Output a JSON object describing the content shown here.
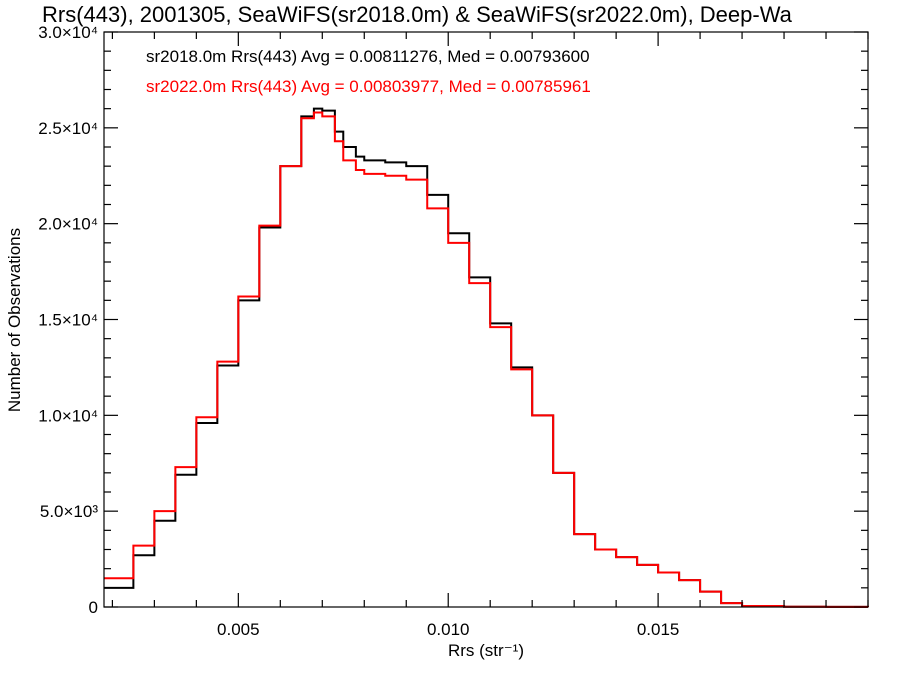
{
  "chart_data": {
    "type": "line",
    "title": "Rrs(443), 2001305, SeaWiFS(sr2018.0m) & SeaWiFS(sr2022.0m), Deep-Wa",
    "xlabel": "Rrs (str⁻¹)",
    "ylabel": "Number of Observations",
    "xlim": [
      0.0018,
      0.02
    ],
    "ylim": [
      0,
      30000
    ],
    "x_ticks": [
      0.005,
      0.01,
      0.015
    ],
    "x_tick_labels": [
      "0.005",
      "0.010",
      "0.015"
    ],
    "y_ticks": [
      0,
      5000,
      10000,
      15000,
      20000,
      25000,
      30000
    ],
    "y_tick_labels": [
      "0",
      "5.0×10³",
      "1.0×10⁴",
      "1.5×10⁴",
      "2.0×10⁴",
      "2.5×10⁴",
      "3.0×10⁴"
    ],
    "grid": false,
    "legend_position": "top-left",
    "annotations": [
      {
        "text": "sr2018.0m Rrs(443) Avg = 0.00811276, Med = 0.00793600",
        "color": "#000000"
      },
      {
        "text": "sr2022.0m Rrs(443) Avg = 0.00803977, Med = 0.00785961",
        "color": "#ff0000"
      }
    ],
    "series": [
      {
        "color": "#000000",
        "x": [
          0.0018,
          0.0025,
          0.003,
          0.0035,
          0.004,
          0.0045,
          0.005,
          0.0055,
          0.006,
          0.0065,
          0.0068,
          0.007,
          0.0073,
          0.0075,
          0.0078,
          0.008,
          0.0085,
          0.009,
          0.0095,
          0.01,
          0.0105,
          0.011,
          0.0115,
          0.012,
          0.0125,
          0.013,
          0.0135,
          0.014,
          0.0145,
          0.015,
          0.0155,
          0.016,
          0.0165,
          0.017,
          0.018,
          0.019,
          0.02
        ],
        "values": [
          1000,
          2700,
          4500,
          6900,
          9600,
          12600,
          16000,
          19800,
          23000,
          25600,
          26000,
          25900,
          24800,
          24000,
          23500,
          23300,
          23200,
          23000,
          21500,
          19500,
          17200,
          14800,
          12500,
          10000,
          7000,
          3800,
          3000,
          2600,
          2200,
          1800,
          1400,
          800,
          200,
          50,
          10,
          5,
          0
        ]
      },
      {
        "color": "#ff0000",
        "x": [
          0.0018,
          0.0025,
          0.003,
          0.0035,
          0.004,
          0.0045,
          0.005,
          0.0055,
          0.006,
          0.0065,
          0.0068,
          0.007,
          0.0073,
          0.0075,
          0.0078,
          0.008,
          0.0085,
          0.009,
          0.0095,
          0.01,
          0.0105,
          0.011,
          0.0115,
          0.012,
          0.0125,
          0.013,
          0.0135,
          0.014,
          0.0145,
          0.015,
          0.0155,
          0.016,
          0.0165,
          0.017,
          0.018,
          0.019,
          0.02
        ],
        "values": [
          1500,
          3200,
          5000,
          7300,
          9900,
          12800,
          16200,
          19900,
          23000,
          25500,
          25800,
          25600,
          24300,
          23300,
          22800,
          22600,
          22500,
          22300,
          20800,
          19000,
          16900,
          14600,
          12400,
          10000,
          7000,
          3800,
          3000,
          2600,
          2200,
          1800,
          1400,
          800,
          200,
          50,
          10,
          5,
          0
        ]
      }
    ]
  }
}
